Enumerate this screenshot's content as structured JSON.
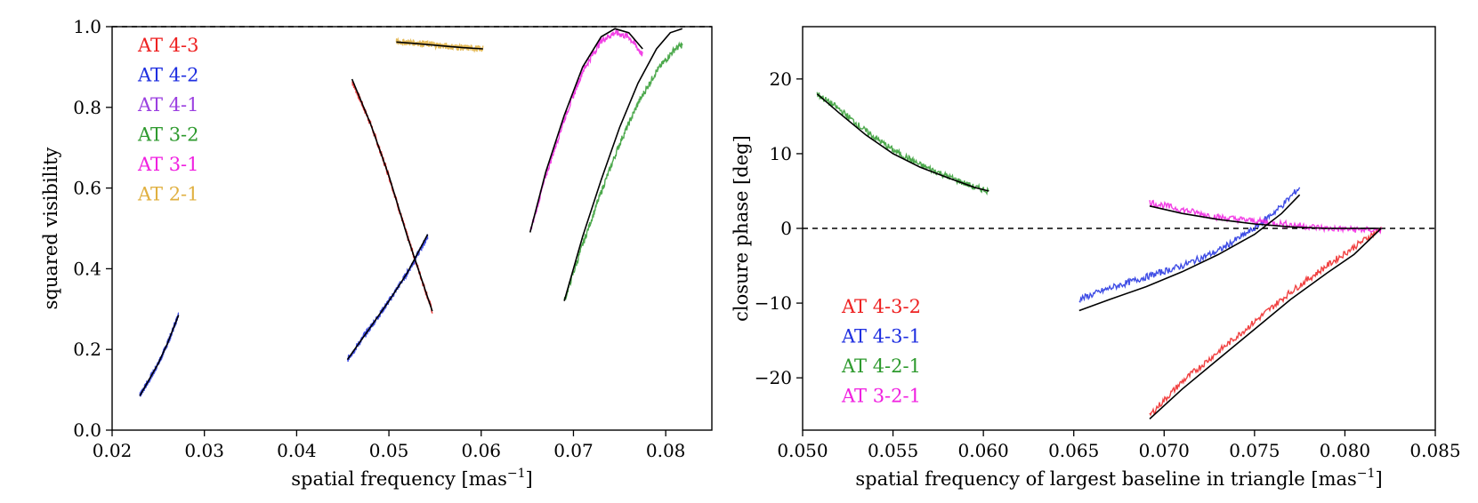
{
  "chart_data": [
    {
      "type": "line",
      "id": "left",
      "xlabel_main": "spatial frequency [mas",
      "xlabel_sup": "−1",
      "xlabel_close": "]",
      "ylabel": "squared visibility",
      "xlim": [
        0.02,
        0.085
      ],
      "ylim": [
        0.0,
        1.0
      ],
      "xticks": [
        0.02,
        0.03,
        0.04,
        0.05,
        0.06,
        0.07,
        0.08
      ],
      "xtick_labels": [
        "0.02",
        "0.03",
        "0.04",
        "0.05",
        "0.06",
        "0.07",
        "0.08"
      ],
      "yticks": [
        0.0,
        0.2,
        0.4,
        0.6,
        0.8,
        1.0
      ],
      "ytick_labels": [
        "0.0",
        "0.2",
        "0.4",
        "0.6",
        "0.8",
        "1.0"
      ],
      "reference_line": 1.0,
      "legend_position": "top-left",
      "series": [
        {
          "name": "AT 4-3",
          "color": "#ee2222",
          "segments": [
            {
              "x": [
                0.046,
                0.048,
                0.05,
                0.052,
                0.0547
              ],
              "y": [
                0.865,
                0.76,
                0.63,
                0.48,
                0.295
              ]
            }
          ]
        },
        {
          "name": "AT 4-2",
          "color": "#1f2fe0",
          "segments": [
            {
              "x": [
                0.023,
                0.024,
                0.025,
                0.026,
                0.0272
              ],
              "y": [
                0.085,
                0.125,
                0.165,
                0.215,
                0.285
              ]
            },
            {
              "x": [
                0.0455,
                0.048,
                0.05,
                0.052,
                0.0542
              ],
              "y": [
                0.175,
                0.255,
                0.32,
                0.39,
                0.48
              ]
            }
          ]
        },
        {
          "name": "AT 4-1",
          "color": "#9b3fe0",
          "segments": []
        },
        {
          "name": "AT 3-2",
          "color": "#2e9a2e",
          "segments": [
            {
              "x": [
                0.069,
                0.071,
                0.073,
                0.075,
                0.077,
                0.079,
                0.081,
                0.0818
              ],
              "y": [
                0.32,
                0.46,
                0.59,
                0.71,
                0.81,
                0.89,
                0.945,
                0.955
              ]
            }
          ]
        },
        {
          "name": "AT 3-1",
          "color": "#f020e0",
          "segments": [
            {
              "x": [
                0.0653,
                0.067,
                0.069,
                0.071,
                0.073,
                0.0745,
                0.076,
                0.0775
              ],
              "y": [
                0.49,
                0.63,
                0.77,
                0.89,
                0.965,
                0.985,
                0.975,
                0.93
              ]
            }
          ]
        },
        {
          "name": "AT 2-1",
          "color": "#e0b040",
          "segments": [
            {
              "x": [
                0.0508,
                0.053,
                0.056,
                0.058,
                0.0602
              ],
              "y": [
                0.963,
                0.96,
                0.952,
                0.948,
                0.945
              ]
            }
          ]
        }
      ],
      "models": [
        {
          "x": [
            0.023,
            0.024,
            0.025,
            0.026,
            0.0272
          ],
          "y": [
            0.085,
            0.125,
            0.165,
            0.215,
            0.285
          ]
        },
        {
          "x": [
            0.046,
            0.048,
            0.05,
            0.052,
            0.0547
          ],
          "y": [
            0.87,
            0.76,
            0.63,
            0.48,
            0.295
          ]
        },
        {
          "x": [
            0.0455,
            0.048,
            0.05,
            0.052,
            0.0542
          ],
          "y": [
            0.175,
            0.255,
            0.32,
            0.39,
            0.485
          ]
        },
        {
          "x": [
            0.0508,
            0.053,
            0.056,
            0.058,
            0.0602
          ],
          "y": [
            0.962,
            0.958,
            0.952,
            0.948,
            0.945
          ]
        },
        {
          "x": [
            0.0653,
            0.067,
            0.069,
            0.071,
            0.073,
            0.0745,
            0.076,
            0.0775
          ],
          "y": [
            0.49,
            0.64,
            0.78,
            0.9,
            0.975,
            0.995,
            0.985,
            0.945
          ]
        },
        {
          "x": [
            0.069,
            0.071,
            0.073,
            0.075,
            0.077,
            0.079,
            0.0805,
            0.0818
          ],
          "y": [
            0.32,
            0.48,
            0.62,
            0.75,
            0.86,
            0.945,
            0.985,
            0.995
          ]
        }
      ]
    },
    {
      "type": "line",
      "id": "right",
      "xlabel_main": "spatial frequency of largest baseline in triangle [mas",
      "xlabel_sup": "−1",
      "xlabel_close": "]",
      "ylabel": "closure phase [deg]",
      "xlim": [
        0.05,
        0.085
      ],
      "ylim": [
        -27,
        27
      ],
      "xticks": [
        0.05,
        0.055,
        0.06,
        0.065,
        0.07,
        0.075,
        0.08,
        0.085
      ],
      "xtick_labels": [
        "0.050",
        "0.055",
        "0.060",
        "0.065",
        "0.070",
        "0.075",
        "0.080",
        "0.085"
      ],
      "yticks": [
        -20,
        -10,
        0,
        10,
        20
      ],
      "ytick_labels": [
        "−20",
        "−10",
        "0",
        "10",
        "20"
      ],
      "reference_line": 0,
      "legend_position": "bottom-left",
      "series": [
        {
          "name": "AT 4-3-2",
          "color": "#ee2222",
          "segments": [
            {
              "x": [
                0.0692,
                0.071,
                0.073,
                0.075,
                0.077,
                0.079,
                0.0805,
                0.082
              ],
              "y": [
                -25,
                -20.5,
                -16.5,
                -12.5,
                -8.5,
                -5,
                -2.5,
                0
              ]
            }
          ]
        },
        {
          "name": "AT 4-3-1",
          "color": "#1f2fe0",
          "segments": [
            {
              "x": [
                0.0653,
                0.067,
                0.069,
                0.071,
                0.073,
                0.075,
                0.0765,
                0.0775
              ],
              "y": [
                -9.5,
                -8,
                -6.5,
                -5,
                -3,
                0,
                3,
                5.5
              ]
            }
          ]
        },
        {
          "name": "AT 4-2-1",
          "color": "#2e9a2e",
          "segments": [
            {
              "x": [
                0.0508,
                0.052,
                0.0535,
                0.055,
                0.0565,
                0.058,
                0.0595,
                0.0603
              ],
              "y": [
                18,
                16,
                13,
                10.5,
                8.5,
                7,
                5.5,
                5
              ]
            }
          ]
        },
        {
          "name": "AT 3-2-1",
          "color": "#f020e0",
          "segments": [
            {
              "x": [
                0.0692,
                0.071,
                0.073,
                0.075,
                0.077,
                0.079,
                0.081,
                0.082
              ],
              "y": [
                3.5,
                2.5,
                1.5,
                1,
                0.5,
                0,
                -0.2,
                -0.2
              ]
            }
          ]
        }
      ],
      "models": [
        {
          "x": [
            0.0508,
            0.052,
            0.0535,
            0.055,
            0.0565,
            0.058,
            0.0595,
            0.0603
          ],
          "y": [
            18,
            15.5,
            12.5,
            10,
            8.2,
            6.8,
            5.5,
            5
          ]
        },
        {
          "x": [
            0.0653,
            0.067,
            0.069,
            0.071,
            0.073,
            0.075,
            0.0765,
            0.0775
          ],
          "y": [
            -11,
            -9.5,
            -7.8,
            -5.8,
            -3.5,
            -0.8,
            2,
            4.5
          ]
        },
        {
          "x": [
            0.0692,
            0.071,
            0.073,
            0.075,
            0.077,
            0.079,
            0.0805,
            0.082
          ],
          "y": [
            -25.5,
            -21.5,
            -17.5,
            -13.5,
            -9.5,
            -6,
            -3.5,
            0
          ]
        },
        {
          "x": [
            0.0692,
            0.071,
            0.073,
            0.075,
            0.077,
            0.079,
            0.081,
            0.082
          ],
          "y": [
            3,
            2,
            1.2,
            0.6,
            0.2,
            0,
            0,
            0
          ]
        }
      ]
    }
  ]
}
